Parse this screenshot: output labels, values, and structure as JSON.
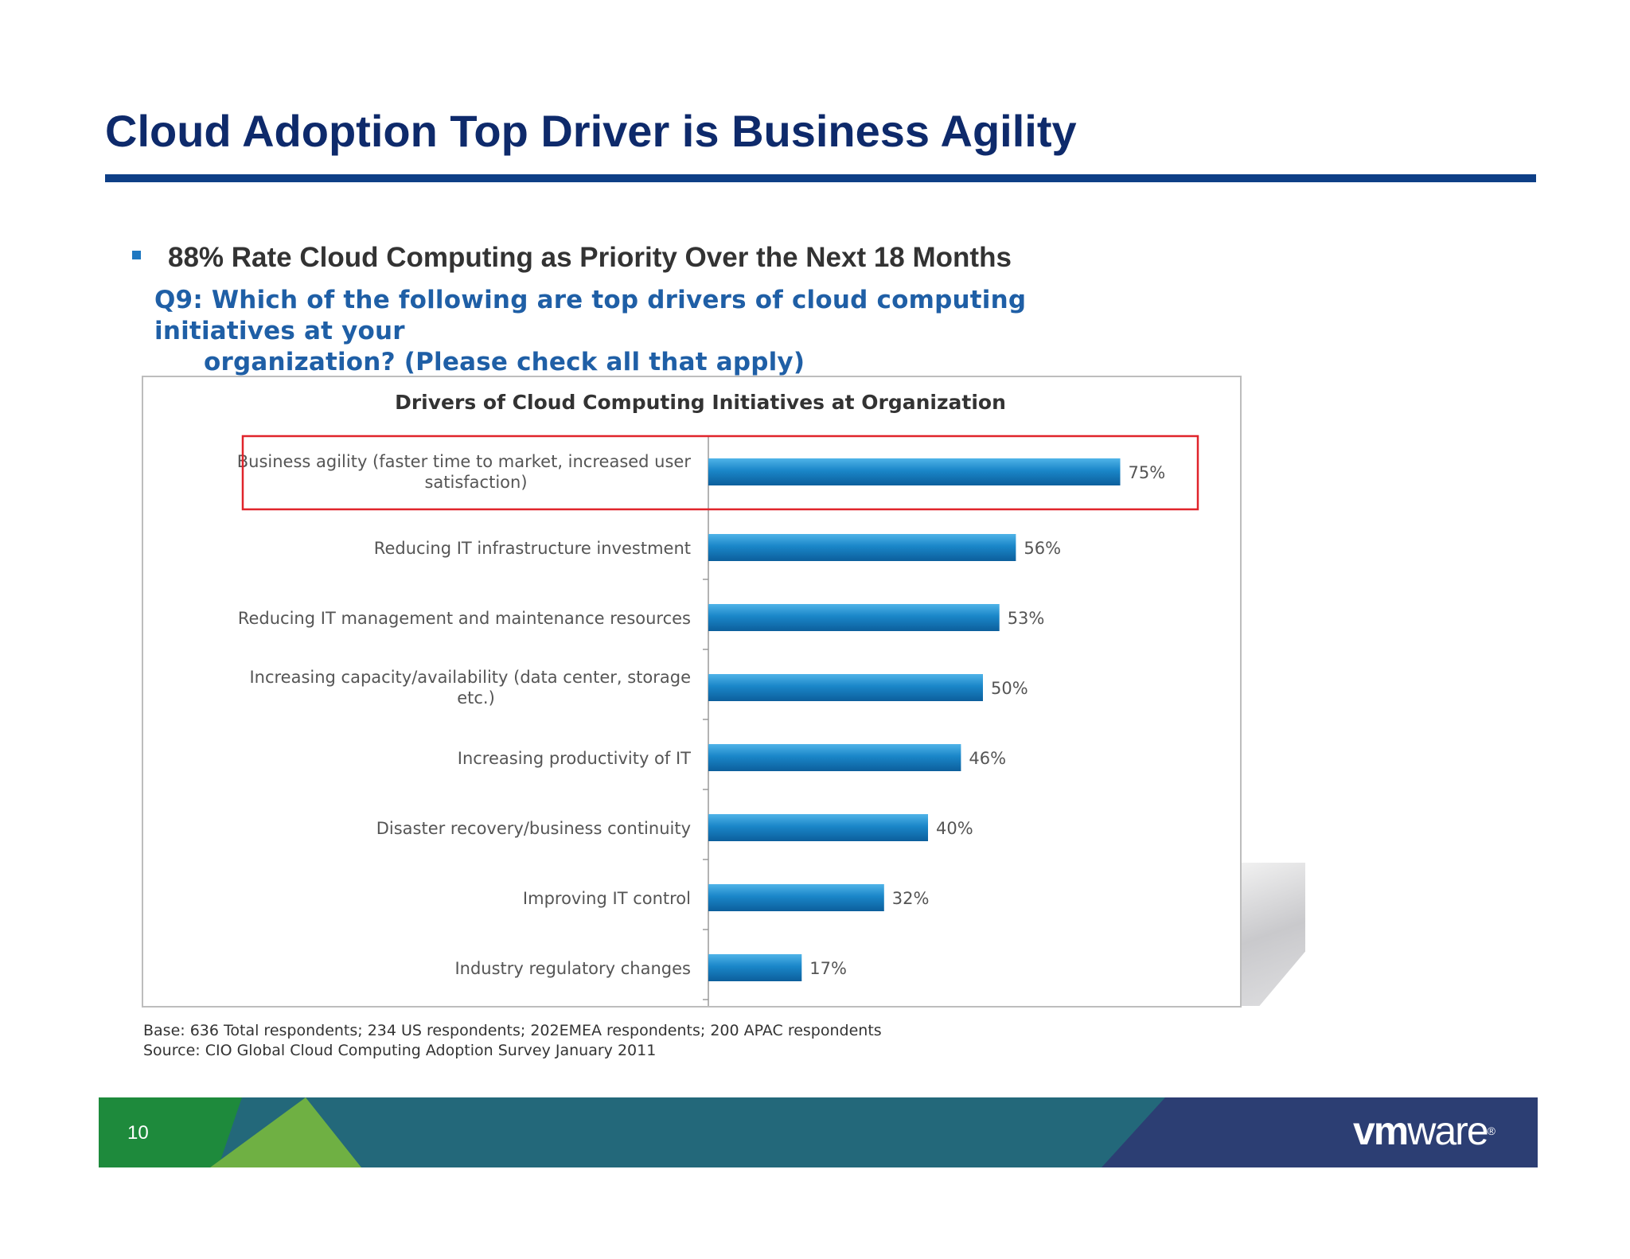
{
  "slide": {
    "title": "Cloud Adoption Top Driver is Business Agility",
    "bullet": "88% Rate Cloud Computing as Priority Over the Next 18 Months",
    "question_line1": "Q9: Which of the following are top drivers of cloud computing initiatives at your",
    "question_line2": "organization? (Please check all that apply)",
    "footnote_base": "Base: 636 Total respondents;  234 US respondents;  202EMEA respondents;  200 APAC respondents",
    "footnote_source": "Source: CIO Global Cloud Computing Adoption Survey January 2011",
    "page_number": "10",
    "logo": {
      "vm": "vm",
      "ware": "ware",
      "reg": "®"
    }
  },
  "colors": {
    "title": "#0e2a6b",
    "rule": "#0e3f86",
    "bar": "#1a86c8",
    "highlight": "#e0242b",
    "footer_green": "#1e8a3c",
    "footer_lightgreen": "#6fb043",
    "footer_teal": "#23687a",
    "footer_navy": "#2c3e73"
  },
  "chart_data": {
    "type": "bar",
    "orientation": "horizontal",
    "title": "Drivers of Cloud Computing Initiatives at Organization",
    "categories": [
      [
        "Business agility (faster time to market, increased user",
        "satisfaction)"
      ],
      [
        "Reducing IT infrastructure investment"
      ],
      [
        "Reducing IT management and maintenance resources"
      ],
      [
        "Increasing capacity/availability (data center, storage",
        "etc.)"
      ],
      [
        "Increasing productivity of IT"
      ],
      [
        "Disaster recovery/business continuity"
      ],
      [
        "Improving IT control"
      ],
      [
        "Industry regulatory changes"
      ]
    ],
    "values": [
      75,
      56,
      53,
      50,
      46,
      40,
      32,
      17
    ],
    "value_labels": [
      "75%",
      "56%",
      "53%",
      "50%",
      "46%",
      "40%",
      "32%",
      "17%"
    ],
    "highlighted_index": 0,
    "xlim": [
      0,
      100
    ],
    "legend": "none",
    "grid": false
  }
}
